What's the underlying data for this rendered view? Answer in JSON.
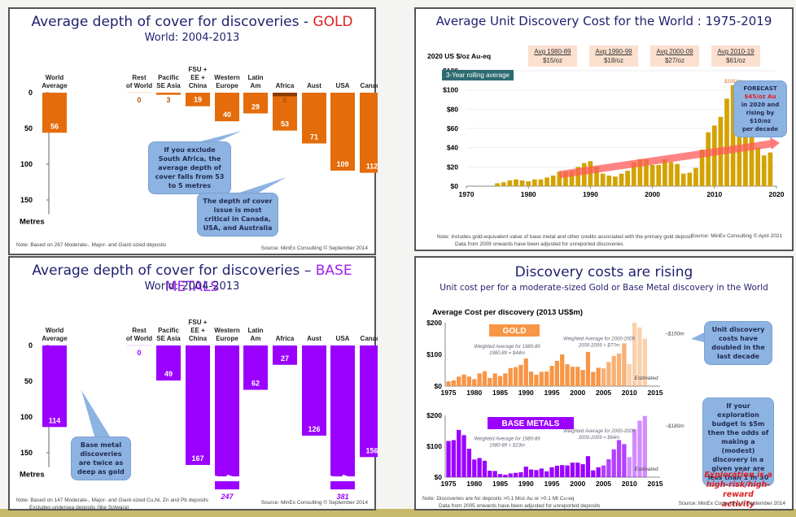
{
  "panels": {
    "gold_depth": {
      "title_prefix": "Average depth of cover for discoveries - ",
      "title_highlight": "GOLD",
      "subtitle": "World: 2004-2013",
      "bubble1": "If you exclude South Africa, the average depth of cover falls from 53 to 5 metres",
      "bubble2": "The depth of  cover issue is most  critical in Canada, USA, and Australia",
      "note": "Note: Based on 267 Moderate-, Major- and Giant-sized deposits",
      "source": "Source: MinEx Consulting © September 2014"
    },
    "gold_cost": {
      "title": "Average Unit Discovery Cost for the World : 1975-2019",
      "rolling_label": "3-Year rolling average",
      "averages": [
        {
          "label": "Avg 1980-89",
          "value": "$15/oz"
        },
        {
          "label": "Avg 1990-99",
          "value": "$18/oz"
        },
        {
          "label": "Avg 2000-09",
          "value": "$27/oz"
        },
        {
          "label": "Avg 2010-19",
          "value": "$61/oz"
        }
      ],
      "forecast_lines": [
        "FORECAST",
        "$45/oz Au",
        "in 2020 and",
        "rising by $10/oz",
        "per decade"
      ],
      "note_line1": "Note:   Includes gold-equivalent value of  base metal and other credits associated with the primary gold deposit",
      "note_line2": "Data from 2009 onwards  have been adjusted for unreported discoveries",
      "source": "Source: MinEx Consulting  © April 2021"
    },
    "base_depth": {
      "title_prefix": "Average depth of cover for discoveries – ",
      "title_highlight": "BASE METALS",
      "subtitle": "World: 2004-2013",
      "bubble1": "Base metal discoveries are twice as deep as gold",
      "note_line1": "Note: Based on 147 Moderate-, Major- and Giant-sized Cu,Ni, Zn and Pb deposits",
      "note_line2": "Excludes undersea deposits (like Solwara)",
      "source": "Source: MinEx Consulting © September 2014"
    },
    "discovery_cost": {
      "title": "Discovery costs are rising",
      "subtitle": "Unit cost per for a moderate-sized Gold or Base Metal discovery in the World",
      "bubble1": "Unit discovery costs have doubled in the last decade",
      "bubble2": "If your exploration budget is $5m then the odds of making a (modest) discovery in a given year are less than 1 in 30",
      "callout_lines": [
        "Exploration is a",
        "high-risk/high-reward",
        "activity"
      ],
      "note_line1": "Note:  Discoveries are for deposits >0.1 Moz Au or >0.1 Mt Cu-eq",
      "note_line2": "Data from 2005 onwards  have been adjusted for unreported deposits",
      "source": "Source: MinEx Consulting © September 2014"
    }
  },
  "chart_data": [
    {
      "id": "gold_depth",
      "type": "bar",
      "title": "Average depth of cover for discoveries - GOLD",
      "subtitle": "World: 2004-2013",
      "ylabel": "Metres",
      "ylim": [
        0,
        170
      ],
      "yticks": [
        0,
        50,
        100,
        150
      ],
      "inverted": true,
      "color": "#e46c0a",
      "categories": [
        "World Average",
        "Rest of World",
        "Pacific SE Asia",
        "FSU + EE + China",
        "Western Europe",
        "Latin Am",
        "Africa",
        "Aust",
        "USA",
        "Canada"
      ],
      "category_lines": [
        [
          "World",
          "Average"
        ],
        [
          "Rest",
          "of World"
        ],
        [
          "Pacific",
          "SE Asia"
        ],
        [
          "FSU +",
          "EE +",
          "China"
        ],
        [
          "Western",
          "Europe"
        ],
        [
          "Latin",
          "Am"
        ],
        [
          "Africa"
        ],
        [
          "Aust"
        ],
        [
          "USA"
        ],
        [
          "Canada"
        ]
      ],
      "values": [
        56,
        0,
        3,
        19,
        40,
        29,
        53,
        71,
        109,
        112
      ],
      "annotations": [
        {
          "category": "Africa",
          "text": "5",
          "note": "excluding South Africa"
        }
      ]
    },
    {
      "id": "gold_cost",
      "type": "bar",
      "title": "Average Unit Discovery Cost for the World : 1975-2019",
      "ylabel": "2020 US $/oz Au-eq",
      "ylim": [
        0,
        120
      ],
      "yticks": [
        0,
        20,
        40,
        60,
        80,
        100,
        120
      ],
      "ytick_labels": [
        "$0",
        "$20",
        "$40",
        "$60",
        "$80",
        "$100",
        "$120"
      ],
      "xlim": [
        1970,
        2020
      ],
      "xticks": [
        1970,
        1980,
        1990,
        2000,
        2010,
        2020
      ],
      "color": "#d4a300",
      "x": [
        1975,
        1976,
        1977,
        1978,
        1979,
        1980,
        1981,
        1982,
        1983,
        1984,
        1985,
        1986,
        1987,
        1988,
        1989,
        1990,
        1991,
        1992,
        1993,
        1994,
        1995,
        1996,
        1997,
        1998,
        1999,
        2000,
        2001,
        2002,
        2003,
        2004,
        2005,
        2006,
        2007,
        2008,
        2009,
        2010,
        2011,
        2012,
        2013,
        2014,
        2015,
        2016,
        2017,
        2018,
        2019
      ],
      "values": [
        3,
        4,
        6,
        7,
        6,
        5,
        7,
        7,
        9,
        11,
        15,
        15,
        16,
        20,
        24,
        26,
        20,
        13,
        11,
        10,
        13,
        16,
        25,
        28,
        28,
        22,
        22,
        28,
        25,
        23,
        13,
        14,
        19,
        38,
        56,
        63,
        72,
        91,
        105,
        101,
        75,
        54,
        40,
        32,
        35
      ],
      "peak_label": "$105/oz",
      "trend": {
        "from": [
          1985,
          12
        ],
        "to": [
          2020,
          45
        ],
        "color": "#ff5a5a"
      }
    },
    {
      "id": "base_depth",
      "type": "bar",
      "title": "Average depth of cover for discoveries – BASE METALS",
      "subtitle": "World: 2004-2013",
      "ylabel": "Metres",
      "ylim": [
        0,
        170
      ],
      "yticks": [
        0,
        50,
        100,
        150
      ],
      "inverted": true,
      "color": "#9b00ff",
      "categories": [
        "World Average",
        "Rest of World",
        "Pacific SE Asia",
        "FSU + EE + China",
        "Western Europe",
        "Latin Am",
        "Africa",
        "Aust",
        "USA",
        "Canada"
      ],
      "category_lines": [
        [
          "World",
          "Average"
        ],
        [
          "Rest",
          "of World"
        ],
        [
          "Pacific",
          "SE Asia"
        ],
        [
          "FSU +",
          "EE +",
          "China"
        ],
        [
          "Western",
          "Europe"
        ],
        [
          "Latin",
          "Am"
        ],
        [
          "Africa"
        ],
        [
          "Aust"
        ],
        [
          "USA"
        ],
        [
          "Canada"
        ]
      ],
      "values": [
        114,
        0,
        49,
        167,
        247,
        62,
        27,
        126,
        381,
        156
      ],
      "broken_axis_labels": {
        "Western Europe": "247",
        "USA": "381"
      }
    },
    {
      "id": "discovery_cost_gold",
      "type": "bar",
      "title": "Average Cost  per discovery (2013 US$m)",
      "series_label": "GOLD",
      "ylim": [
        0,
        200
      ],
      "yticks": [
        0,
        100,
        200
      ],
      "ytick_labels": [
        "$0",
        "$100",
        "$200"
      ],
      "xticks": [
        1975,
        1980,
        1985,
        1990,
        1995,
        2000,
        2005,
        2010,
        2015
      ],
      "color": "#f79646",
      "x": [
        1975,
        1976,
        1977,
        1978,
        1979,
        1980,
        1981,
        1982,
        1983,
        1984,
        1985,
        1986,
        1987,
        1988,
        1989,
        1990,
        1991,
        1992,
        1993,
        1994,
        1995,
        1996,
        1997,
        1998,
        1999,
        2000,
        2001,
        2002,
        2003,
        2004,
        2005,
        2006,
        2007,
        2008,
        2009,
        2010,
        2011,
        2012,
        2013
      ],
      "values": [
        15,
        18,
        30,
        36,
        30,
        22,
        40,
        47,
        26,
        40,
        32,
        40,
        57,
        60,
        67,
        87,
        46,
        36,
        45,
        46,
        64,
        80,
        100,
        69,
        61,
        61,
        51,
        108,
        45,
        58,
        56,
        76,
        95,
        103,
        135,
        69,
        200,
        185,
        150
      ],
      "estimated_from": 2005,
      "annotations": [
        "Weighted Average for 1980-89 = $44m",
        "Weighted Average for 2000-2009 = $77m",
        "~$150m",
        "Estimated"
      ]
    },
    {
      "id": "discovery_cost_base",
      "type": "bar",
      "series_label": "BASE METALS",
      "ylim": [
        0,
        200
      ],
      "yticks": [
        0,
        100,
        200
      ],
      "ytick_labels": [
        "$0",
        "$100",
        "$200"
      ],
      "xticks": [
        1975,
        1980,
        1985,
        1990,
        1995,
        2000,
        2005,
        2010,
        2015
      ],
      "color": "#9b00ff",
      "x": [
        1975,
        1976,
        1977,
        1978,
        1979,
        1980,
        1981,
        1982,
        1983,
        1984,
        1985,
        1986,
        1987,
        1988,
        1989,
        1990,
        1991,
        1992,
        1993,
        1994,
        1995,
        1996,
        1997,
        1998,
        1999,
        2000,
        2001,
        2002,
        2003,
        2004,
        2005,
        2006,
        2007,
        2008,
        2009,
        2010,
        2011,
        2012,
        2013
      ],
      "values": [
        117,
        120,
        153,
        136,
        92,
        57,
        62,
        53,
        21,
        20,
        10,
        8,
        12,
        14,
        16,
        34,
        25,
        23,
        28,
        19,
        32,
        37,
        39,
        38,
        47,
        47,
        42,
        68,
        22,
        32,
        38,
        58,
        90,
        120,
        107,
        65,
        155,
        183,
        198
      ],
      "estimated_from": 2005,
      "annotations": [
        "Weighted Average for 1980-89 = $23m",
        "Weighted Average for 2000-2009 = $64m",
        "~$180m",
        "Estimated"
      ]
    }
  ]
}
